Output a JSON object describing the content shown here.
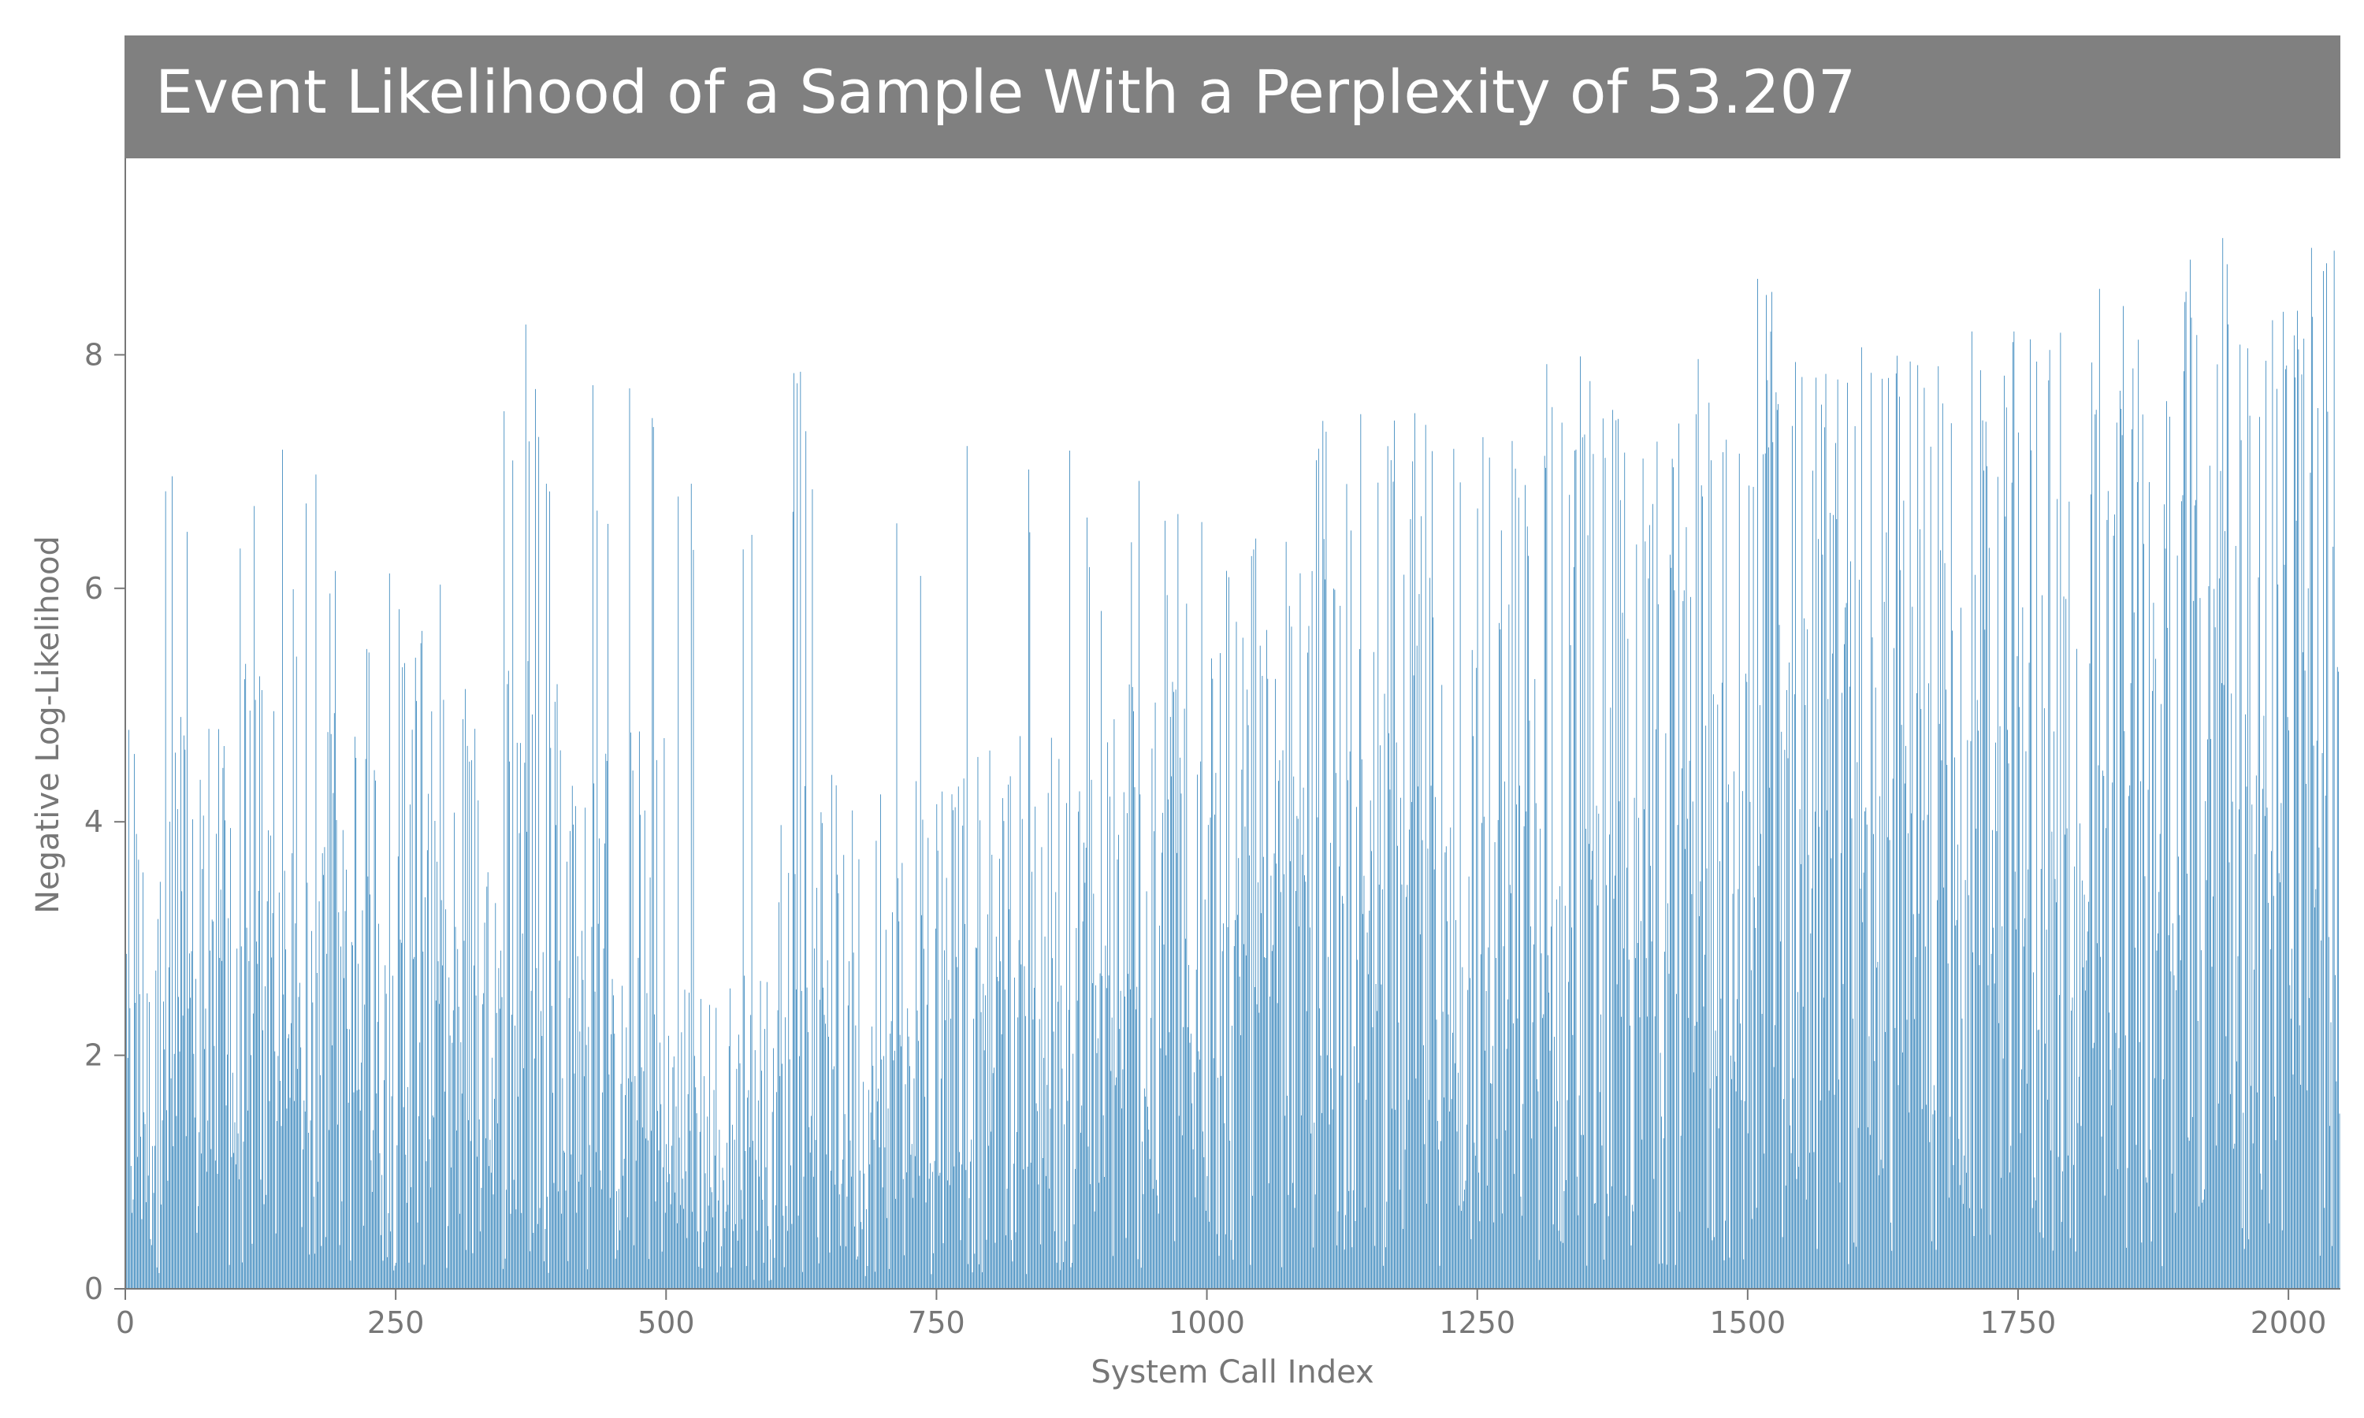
{
  "chart_data": {
    "type": "bar",
    "title": "Event Likelihood of a Sample With a Perplexity of 53.207",
    "xlabel": "System Call Index",
    "ylabel": "Negative Log-Likelihood",
    "xlim": [
      0,
      2048
    ],
    "ylim": [
      0,
      9.5
    ],
    "xticks": [
      0,
      250,
      500,
      750,
      1000,
      1250,
      1500,
      1750,
      2000
    ],
    "yticks": [
      0,
      2,
      4,
      6,
      8
    ],
    "grid": false,
    "legend": "none",
    "series_count": 2048,
    "segments": [
      {
        "start": 0,
        "end": 100,
        "mean": 2.4,
        "max": 7.5
      },
      {
        "start": 100,
        "end": 200,
        "mean": 2.6,
        "max": 7.2
      },
      {
        "start": 200,
        "end": 300,
        "mean": 2.8,
        "max": 7.0
      },
      {
        "start": 300,
        "end": 400,
        "mean": 2.7,
        "max": 8.4
      },
      {
        "start": 400,
        "end": 500,
        "mean": 2.3,
        "max": 8.1
      },
      {
        "start": 500,
        "end": 600,
        "mean": 1.3,
        "max": 7.0
      },
      {
        "start": 600,
        "end": 700,
        "mean": 2.1,
        "max": 8.2
      },
      {
        "start": 700,
        "end": 800,
        "mean": 2.2,
        "max": 7.6
      },
      {
        "start": 800,
        "end": 900,
        "mean": 2.3,
        "max": 7.2
      },
      {
        "start": 900,
        "end": 1000,
        "mean": 2.6,
        "max": 7.1
      },
      {
        "start": 1000,
        "end": 1100,
        "mean": 3.1,
        "max": 7.2
      },
      {
        "start": 1100,
        "end": 1200,
        "mean": 3.6,
        "max": 7.5
      },
      {
        "start": 1200,
        "end": 1300,
        "mean": 3.7,
        "max": 7.4
      },
      {
        "start": 1300,
        "end": 1400,
        "mean": 3.6,
        "max": 8.4
      },
      {
        "start": 1400,
        "end": 1500,
        "mean": 3.8,
        "max": 8.2
      },
      {
        "start": 1500,
        "end": 1600,
        "mean": 3.8,
        "max": 8.8
      },
      {
        "start": 1600,
        "end": 1700,
        "mean": 3.9,
        "max": 8.5
      },
      {
        "start": 1700,
        "end": 1800,
        "mean": 4.0,
        "max": 8.2
      },
      {
        "start": 1800,
        "end": 1900,
        "mean": 3.8,
        "max": 9.2
      },
      {
        "start": 1900,
        "end": 2048,
        "mean": 4.3,
        "max": 9.0
      }
    ],
    "colors": {
      "bar": "#1f77b4",
      "title_band": "#808080",
      "title_text": "#ffffff",
      "axis": "#777777"
    }
  }
}
